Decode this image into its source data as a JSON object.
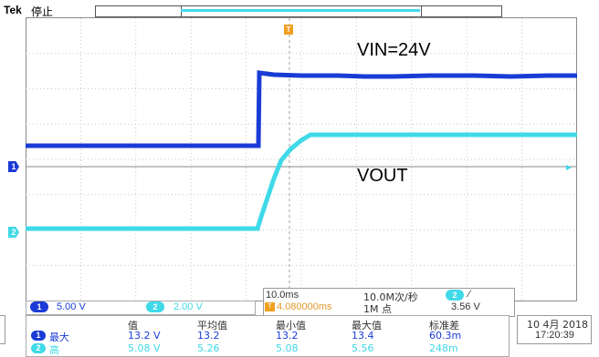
{
  "header": {
    "brand": "Tek",
    "state": "停止"
  },
  "screen": {
    "label_vin": "VIN=24V",
    "label_vout": "VOUT",
    "ch1_marker": "1",
    "ch2_marker": "2",
    "trigger_marker": "T"
  },
  "channels": {
    "ch1": {
      "badge": "1",
      "scale": "5.00 V",
      "color": "#1a3bd6"
    },
    "ch2": {
      "badge": "2",
      "scale": "2.00 V",
      "color": "#3fd9e8"
    }
  },
  "timebase": {
    "scale": "10.0ms",
    "trigger_position": "4.080000ms",
    "sample_rate": "10.0M次/秒",
    "record_length": "1M 点",
    "trigger_source": "2",
    "trigger_slope": "∕",
    "trigger_level": "3.56 V"
  },
  "measurements": {
    "headers": [
      "值",
      "平均值",
      "最小值",
      "最大值",
      "标准差"
    ],
    "rows": [
      {
        "channel": "1",
        "type": "最大",
        "values": [
          "13.2 V",
          "13.2",
          "13.2",
          "13.4",
          "60.3m"
        ]
      },
      {
        "channel": "2",
        "type": "高",
        "values": [
          "5.08 V",
          "5.26",
          "5.08",
          "5.56",
          "248m"
        ]
      }
    ]
  },
  "datetime": {
    "date": "10 4月 2018",
    "time": "17:20:39"
  }
}
